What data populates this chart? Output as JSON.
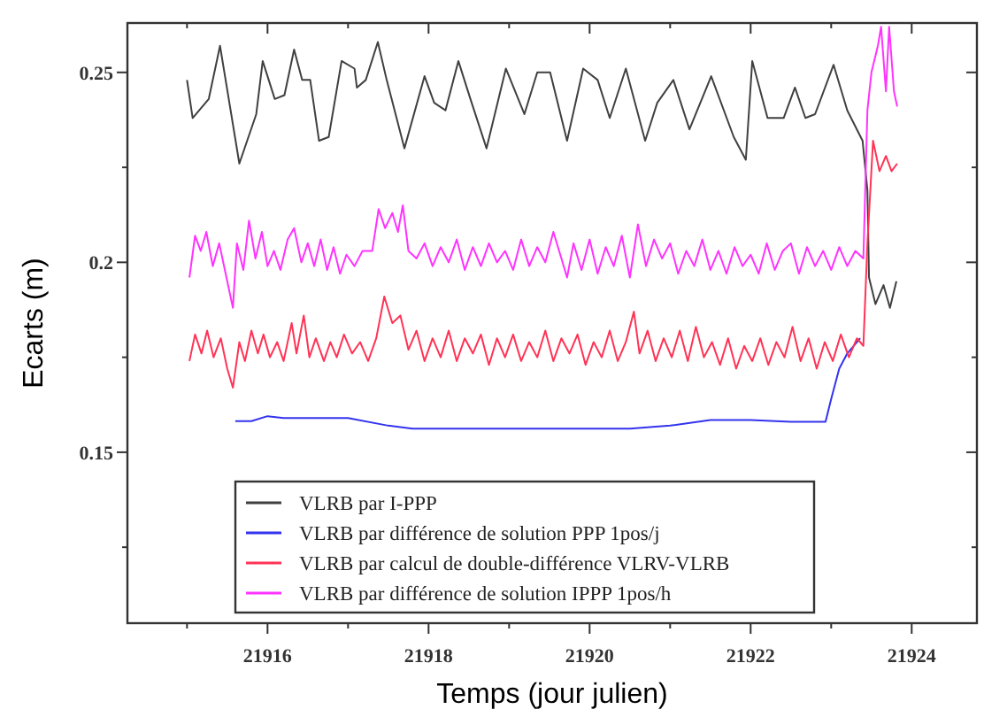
{
  "chart_data": {
    "type": "line",
    "xlabel": "Temps (jour julien)",
    "ylabel": "Ecarts (m)",
    "xlim": [
      21914.26,
      21924.81
    ],
    "xticks": [
      {
        "value": 21915,
        "label": null
      },
      21916,
      {
        "value": 21917,
        "label": null
      },
      21918,
      {
        "value": 21919,
        "label": null
      },
      21920,
      {
        "value": 21921,
        "label": null
      },
      21922,
      {
        "value": 21923,
        "label": null
      },
      21924
    ],
    "ylim": [
      0.105,
      0.263
    ],
    "yticks": [
      {
        "value": 0.125,
        "label": null
      },
      0.15,
      {
        "value": 0.175,
        "label": null
      },
      0.2,
      {
        "value": 0.225,
        "label": null
      },
      0.25
    ],
    "grid": false,
    "legend": "bottom",
    "marker": "none",
    "line_style": "solid",
    "series": [
      {
        "name": "VLRB par I-PPP",
        "color": "#404040",
        "x": [
          21915.0,
          21915.07,
          21915.27,
          21915.41,
          21915.65,
          21915.86,
          21915.94,
          21916.09,
          21916.21,
          21916.33,
          21916.43,
          21916.53,
          21916.64,
          21916.76,
          21916.92,
          21917.08,
          21917.11,
          21917.22,
          21917.37,
          21917.48,
          21917.7,
          21917.95,
          21918.07,
          21918.21,
          21918.37,
          21918.52,
          21918.72,
          21918.96,
          21919.19,
          21919.35,
          21919.51,
          21919.72,
          21919.92,
          21920.1,
          21920.25,
          21920.45,
          21920.69,
          21920.84,
          21921.04,
          21921.24,
          21921.51,
          21921.79,
          21921.94,
          21922.02,
          21922.21,
          21922.41,
          21922.55,
          21922.68,
          21922.8,
          21923.03,
          21923.2,
          21923.39,
          21923.45,
          21923.47,
          21923.55,
          21923.65,
          21923.73,
          21923.81
        ],
        "values": [
          0.248,
          0.238,
          0.243,
          0.257,
          0.226,
          0.239,
          0.253,
          0.243,
          0.244,
          0.256,
          0.248,
          0.248,
          0.232,
          0.233,
          0.253,
          0.251,
          0.246,
          0.248,
          0.258,
          0.248,
          0.23,
          0.249,
          0.242,
          0.24,
          0.253,
          0.243,
          0.23,
          0.251,
          0.239,
          0.25,
          0.25,
          0.232,
          0.251,
          0.248,
          0.238,
          0.251,
          0.232,
          0.242,
          0.248,
          0.235,
          0.249,
          0.233,
          0.227,
          0.253,
          0.238,
          0.238,
          0.246,
          0.238,
          0.239,
          0.252,
          0.24,
          0.232,
          0.219,
          0.196,
          0.189,
          0.194,
          0.188,
          0.195
        ]
      },
      {
        "name": "VLRB par différence de solution  PPP 1pos/j",
        "color": "#3333ee",
        "x": [
          21915.6,
          21915.8,
          21916.0,
          21916.2,
          21917.0,
          21917.5,
          21917.8,
          21919.0,
          21920.5,
          21921.0,
          21921.5,
          21922.0,
          21922.5,
          21922.93,
          21923.0,
          21923.1,
          21923.2,
          21923.36
        ],
        "values": [
          0.1582,
          0.1582,
          0.1595,
          0.159,
          0.159,
          0.157,
          0.1562,
          0.1562,
          0.1562,
          0.157,
          0.1585,
          0.1585,
          0.158,
          0.158,
          0.164,
          0.172,
          0.176,
          0.18
        ]
      },
      {
        "name": "VLRB par calcul de double-différence VLRV-VLRB",
        "color": "#ff3355",
        "x": [
          21915.03,
          21915.1,
          21915.18,
          21915.25,
          21915.33,
          21915.42,
          21915.5,
          21915.57,
          21915.65,
          21915.72,
          21915.8,
          21915.88,
          21915.95,
          21916.03,
          21916.12,
          21916.2,
          21916.3,
          21916.36,
          21916.45,
          21916.52,
          21916.6,
          21916.7,
          21916.78,
          21916.86,
          21916.95,
          21917.05,
          21917.15,
          21917.25,
          21917.35,
          21917.45,
          21917.55,
          21917.65,
          21917.75,
          21917.85,
          21917.95,
          21918.05,
          21918.15,
          21918.25,
          21918.35,
          21918.45,
          21918.55,
          21918.65,
          21918.75,
          21918.85,
          21918.95,
          21919.05,
          21919.15,
          21919.25,
          21919.35,
          21919.45,
          21919.55,
          21919.65,
          21919.75,
          21919.85,
          21919.95,
          21920.05,
          21920.15,
          21920.25,
          21920.35,
          21920.45,
          21920.55,
          21920.62,
          21920.72,
          21920.82,
          21920.92,
          21921.02,
          21921.12,
          21921.22,
          21921.32,
          21921.42,
          21921.52,
          21921.62,
          21921.72,
          21921.82,
          21921.92,
          21922.02,
          21922.12,
          21922.22,
          21922.32,
          21922.42,
          21922.52,
          21922.62,
          21922.72,
          21922.82,
          21922.92,
          21923.02,
          21923.12,
          21923.22,
          21923.32,
          21923.4,
          21923.45,
          21923.52,
          21923.6,
          21923.68,
          21923.75,
          21923.82
        ],
        "values": [
          0.174,
          0.181,
          0.176,
          0.182,
          0.175,
          0.18,
          0.172,
          0.167,
          0.179,
          0.174,
          0.182,
          0.176,
          0.181,
          0.175,
          0.179,
          0.174,
          0.184,
          0.176,
          0.186,
          0.175,
          0.18,
          0.174,
          0.179,
          0.175,
          0.181,
          0.176,
          0.179,
          0.174,
          0.18,
          0.191,
          0.184,
          0.186,
          0.177,
          0.182,
          0.174,
          0.18,
          0.175,
          0.182,
          0.174,
          0.18,
          0.176,
          0.181,
          0.173,
          0.18,
          0.175,
          0.181,
          0.174,
          0.179,
          0.175,
          0.182,
          0.174,
          0.18,
          0.176,
          0.181,
          0.173,
          0.179,
          0.175,
          0.182,
          0.174,
          0.179,
          0.187,
          0.176,
          0.182,
          0.174,
          0.18,
          0.175,
          0.182,
          0.174,
          0.183,
          0.175,
          0.179,
          0.173,
          0.18,
          0.172,
          0.178,
          0.174,
          0.18,
          0.173,
          0.179,
          0.175,
          0.183,
          0.174,
          0.18,
          0.172,
          0.179,
          0.174,
          0.181,
          0.175,
          0.18,
          0.178,
          0.205,
          0.232,
          0.224,
          0.228,
          0.224,
          0.226
        ]
      },
      {
        "name": "VLRB par différence de solution IPPP 1pos/h",
        "color": "#ff33ff",
        "x": [
          21915.03,
          21915.1,
          21915.17,
          21915.24,
          21915.32,
          21915.4,
          21915.5,
          21915.57,
          21915.62,
          21915.7,
          21915.77,
          21915.85,
          21915.93,
          21916.0,
          21916.08,
          21916.16,
          21916.25,
          21916.33,
          21916.42,
          21916.5,
          21916.58,
          21916.66,
          21916.74,
          21916.82,
          21916.9,
          21916.98,
          21917.08,
          21917.18,
          21917.3,
          21917.38,
          21917.46,
          21917.55,
          21917.62,
          21917.68,
          21917.75,
          21917.85,
          21917.95,
          21918.05,
          21918.15,
          21918.25,
          21918.35,
          21918.45,
          21918.55,
          21918.65,
          21918.75,
          21918.85,
          21918.95,
          21919.05,
          21919.15,
          21919.25,
          21919.35,
          21919.45,
          21919.55,
          21919.65,
          21919.72,
          21919.8,
          21919.9,
          21920.0,
          21920.1,
          21920.2,
          21920.3,
          21920.4,
          21920.5,
          21920.6,
          21920.7,
          21920.8,
          21920.9,
          21921.0,
          21921.1,
          21921.2,
          21921.3,
          21921.4,
          21921.5,
          21921.6,
          21921.7,
          21921.8,
          21921.9,
          21922.0,
          21922.1,
          21922.2,
          21922.3,
          21922.4,
          21922.5,
          21922.6,
          21922.7,
          21922.8,
          21922.9,
          21923.0,
          21923.1,
          21923.2,
          21923.3,
          21923.4,
          21923.45,
          21923.5,
          21923.58,
          21923.62,
          21923.68,
          21923.72,
          21923.78,
          21923.82
        ],
        "values": [
          0.196,
          0.207,
          0.203,
          0.208,
          0.199,
          0.205,
          0.195,
          0.188,
          0.205,
          0.198,
          0.211,
          0.201,
          0.208,
          0.199,
          0.203,
          0.198,
          0.206,
          0.209,
          0.2,
          0.205,
          0.199,
          0.206,
          0.198,
          0.204,
          0.197,
          0.202,
          0.199,
          0.203,
          0.203,
          0.214,
          0.209,
          0.213,
          0.208,
          0.215,
          0.203,
          0.201,
          0.205,
          0.199,
          0.204,
          0.2,
          0.206,
          0.198,
          0.204,
          0.199,
          0.205,
          0.2,
          0.203,
          0.198,
          0.206,
          0.199,
          0.204,
          0.2,
          0.208,
          0.201,
          0.196,
          0.205,
          0.198,
          0.206,
          0.197,
          0.204,
          0.199,
          0.207,
          0.196,
          0.21,
          0.199,
          0.206,
          0.201,
          0.205,
          0.197,
          0.203,
          0.199,
          0.206,
          0.198,
          0.203,
          0.197,
          0.204,
          0.199,
          0.202,
          0.197,
          0.205,
          0.198,
          0.203,
          0.205,
          0.197,
          0.204,
          0.199,
          0.203,
          0.198,
          0.204,
          0.199,
          0.203,
          0.201,
          0.24,
          0.25,
          0.257,
          0.262,
          0.245,
          0.262,
          0.245,
          0.241
        ]
      }
    ]
  }
}
